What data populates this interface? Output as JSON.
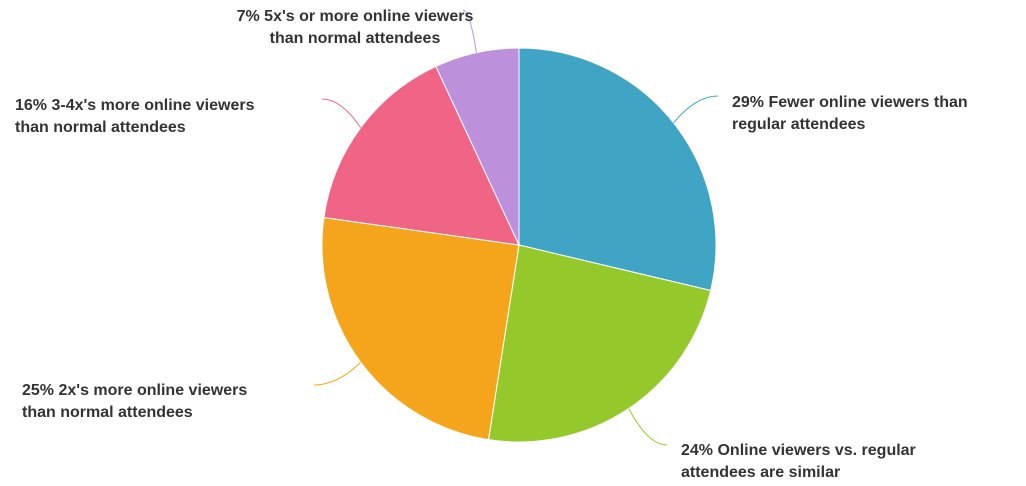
{
  "chart_data": {
    "type": "pie",
    "slices": [
      {
        "percent": 29,
        "label_lines": [
          "29% Fewer online viewers than",
          "regular attendees"
        ],
        "color": "#40A4C4"
      },
      {
        "percent": 24,
        "label_lines": [
          "24% Online viewers vs. regular",
          "attendees are similar"
        ],
        "color": "#95C92B"
      },
      {
        "percent": 25,
        "label_lines": [
          "25% 2x's more online viewers",
          "than normal attendees"
        ],
        "color": "#F5A51C"
      },
      {
        "percent": 16,
        "label_lines": [
          "16% 3-4x's more online viewers",
          "than normal attendees"
        ],
        "color": "#F06586"
      },
      {
        "percent": 7,
        "label_lines": [
          "7% 5x's or more online viewers",
          "than normal attendees"
        ],
        "color": "#BD90DB"
      }
    ],
    "start_angle": "12 o'clock",
    "direction": "clockwise",
    "legend": "none"
  }
}
